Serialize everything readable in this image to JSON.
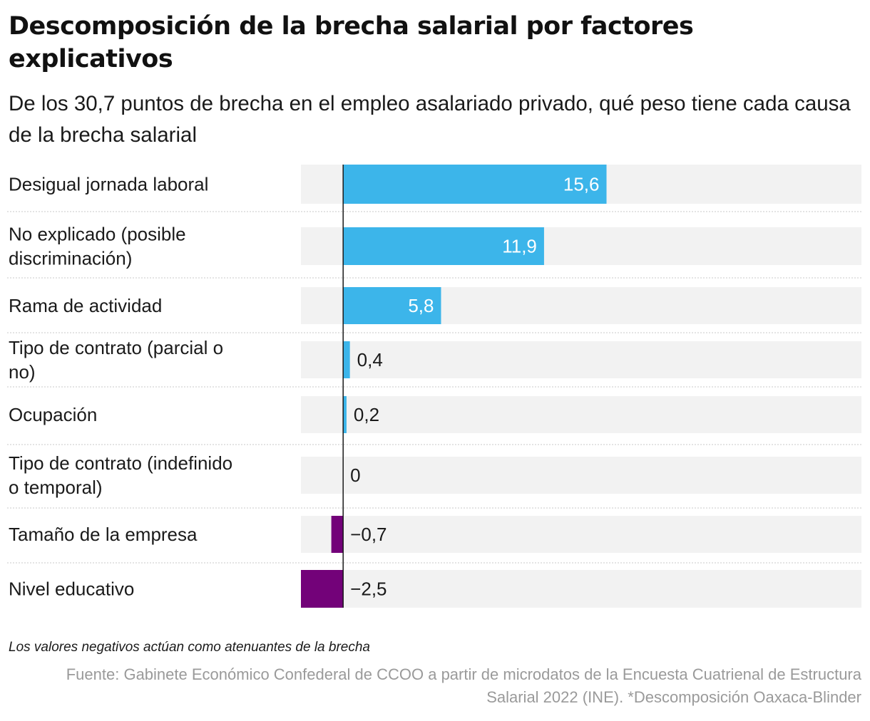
{
  "chart_data": {
    "type": "bar",
    "orientation": "horizontal",
    "title": "Descomposición de la brecha salarial por factores explicativos",
    "subtitle": "De los 30,7 puntos de brecha en el empleo asalariado privado, qué peso tiene cada causa de la brecha salarial",
    "categories": [
      "Desigual jornada laboral",
      "No explicado (posible discriminación)",
      "Rama de actividad",
      "Tipo de contrato (parcial o no)",
      "Ocupación",
      "Tipo de contrato (indefinido o temporal)",
      "Tamaño de la empresa",
      "Nivel educativo"
    ],
    "values": [
      15.6,
      11.9,
      5.8,
      0.4,
      0.2,
      0,
      -0.7,
      -2.5
    ],
    "value_labels": [
      "15,6",
      "11,9",
      "5,8",
      "0,4",
      "0,2",
      "0",
      "−0,7",
      "−2,5"
    ],
    "xlim": [
      -2.5,
      30.7
    ],
    "colors": {
      "positive": "#3cb5ea",
      "negative": "#730279",
      "track": "#f2f2f2",
      "zero_line": "#1a1a1a"
    },
    "grid": false,
    "legend": "none"
  },
  "note": "Los valores negativos actúan como atenuantes de la brecha",
  "source": "Fuente: Gabinete Económico Confederal de CCOO a partir de microdatos de la Encuesta Cuatrienal de Estructura Salarial 2022 (INE). *Descomposición Oaxaca-Blinder"
}
